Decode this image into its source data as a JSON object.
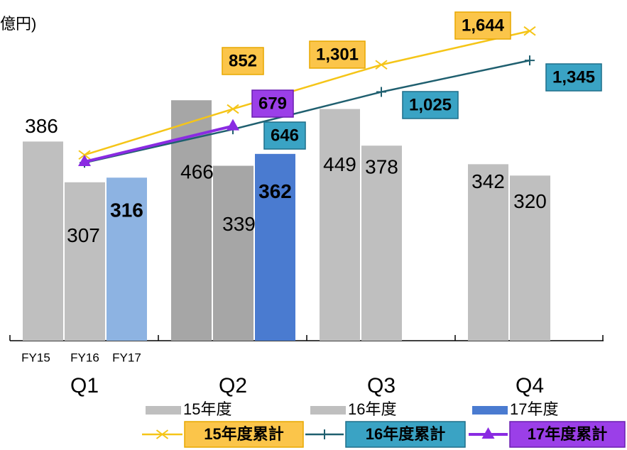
{
  "chart_data": {
    "type": "bar",
    "unit_label": "億円)",
    "categories": [
      "Q1",
      "Q2",
      "Q3",
      "Q4"
    ],
    "group_labels": [
      "FY15",
      "FY16",
      "FY17"
    ],
    "ylim": [
      0,
      630
    ],
    "y2lim": [
      -1500,
      1800
    ],
    "series": [
      {
        "name": "15年度",
        "type": "bar",
        "color": "#bfbfbf",
        "colors": [
          "#bfbfbf",
          "#a6a6a6",
          "#bfbfbf",
          "#bfbfbf"
        ],
        "values": [
          386,
          466,
          449,
          342
        ]
      },
      {
        "name": "16年度",
        "type": "bar",
        "color": "#bfbfbf",
        "colors": [
          "#bfbfbf",
          "#a6a6a6",
          "#bfbfbf",
          "#bfbfbf"
        ],
        "values": [
          307,
          339,
          378,
          320
        ]
      },
      {
        "name": "17年度",
        "type": "bar",
        "color": "#4a7bd0",
        "colors": [
          "#8db3e2",
          "#4a7bd0",
          null,
          null
        ],
        "values": [
          316,
          362,
          null,
          null
        ]
      },
      {
        "name": "15年度累計",
        "type": "line",
        "axis": "y2",
        "color": "#f5c518",
        "label_fill": "#fbc54a",
        "label_border": "#e8a800",
        "label_text": "#595959",
        "marker": "x",
        "values": [
          386,
          852,
          1301,
          1644
        ],
        "value_labels": [
          null,
          null,
          "1,301",
          "1,644"
        ]
      },
      {
        "name": "16年度累計",
        "type": "line",
        "axis": "y2",
        "color": "#1f5f6f",
        "label_fill": "#3aa3c4",
        "label_border": "#1f6f8a",
        "label_text": "#ffffff",
        "marker": "plus",
        "values": [
          307,
          646,
          1025,
          1345
        ],
        "value_labels": [
          null,
          null,
          "1,025",
          "1,345"
        ]
      },
      {
        "name": "17年度累計",
        "type": "line",
        "axis": "y2",
        "color": "#8a2be2",
        "label_fill": "#9b3fe8",
        "label_border": "#6a1fb0",
        "label_text": "#ffffff",
        "marker": "triangle",
        "values": [
          316,
          679,
          null,
          null
        ]
      }
    ]
  }
}
